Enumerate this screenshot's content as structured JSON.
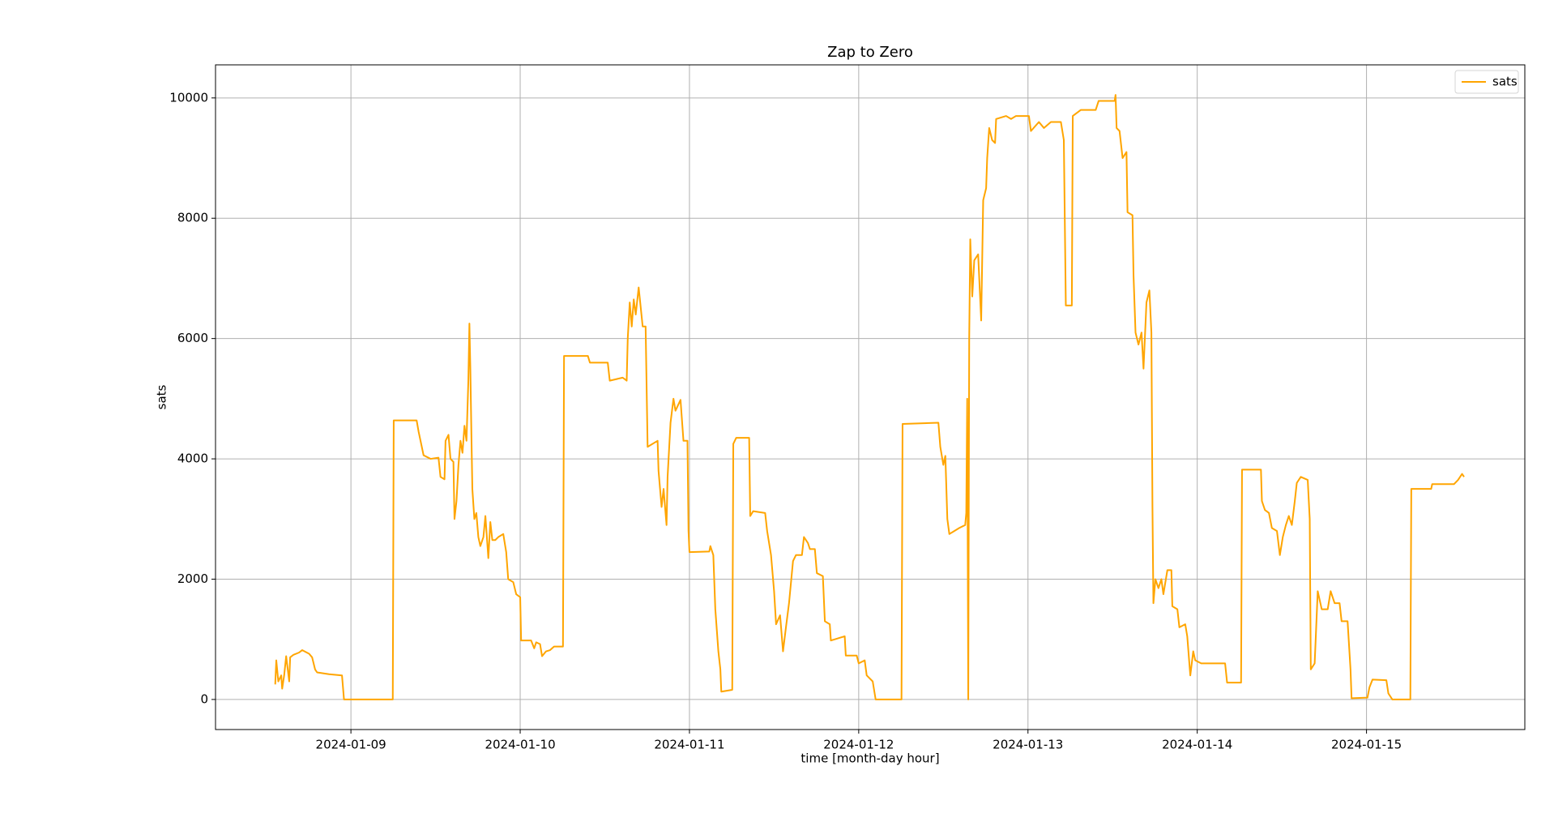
{
  "chart_data": {
    "type": "line",
    "title": "Zap to Zero",
    "x_label": "time [month-day hour]",
    "y_label": "sats",
    "x": [
      "2024-01-08 13:16",
      "2024-01-08 13:25",
      "2024-01-08 13:42",
      "2024-01-08 14:07",
      "2024-01-08 14:15",
      "2024-01-08 14:32",
      "2024-01-08 14:49",
      "2024-01-08 15:15",
      "2024-01-08 15:23",
      "2024-01-08 15:49",
      "2024-01-08 16:39",
      "2024-01-08 17:05",
      "2024-01-08 18:04",
      "2024-01-08 18:30",
      "2024-01-08 18:55",
      "2024-01-08 19:12",
      "2024-01-08 20:54",
      "2024-01-08 22:44",
      "2024-01-08 23:01",
      "2024-01-09 05:56",
      "2024-01-09 06:04",
      "2024-01-09 09:19",
      "2024-01-09 09:36",
      "2024-01-09 10:18",
      "2024-01-09 11:18",
      "2024-01-09 12:25",
      "2024-01-09 12:42",
      "2024-01-09 13:16",
      "2024-01-09 13:25",
      "2024-01-09 13:50",
      "2024-01-09 14:07",
      "2024-01-09 14:32",
      "2024-01-09 14:41",
      "2024-01-09 14:58",
      "2024-01-09 15:15",
      "2024-01-09 15:32",
      "2024-01-09 15:49",
      "2024-01-09 16:06",
      "2024-01-09 16:23",
      "2024-01-09 16:39",
      "2024-01-09 16:48",
      "2024-01-09 16:56",
      "2024-01-09 17:05",
      "2024-01-09 17:13",
      "2024-01-09 17:30",
      "2024-01-09 17:47",
      "2024-01-09 18:04",
      "2024-01-09 18:21",
      "2024-01-09 18:47",
      "2024-01-09 19:04",
      "2024-01-09 19:29",
      "2024-01-09 19:46",
      "2024-01-09 20:03",
      "2024-01-09 20:28",
      "2024-01-09 20:54",
      "2024-01-09 21:36",
      "2024-01-09 22:01",
      "2024-01-09 22:18",
      "2024-01-09 23:01",
      "2024-01-09 23:26",
      "2024-01-10 00:00",
      "2024-01-10 00:08",
      "2024-01-10 01:33",
      "2024-01-10 01:59",
      "2024-01-10 02:16",
      "2024-01-10 02:49",
      "2024-01-10 03:06",
      "2024-01-10 03:40",
      "2024-01-10 04:14",
      "2024-01-10 04:48",
      "2024-01-10 06:04",
      "2024-01-10 06:13",
      "2024-01-10 09:36",
      "2024-01-10 09:53",
      "2024-01-10 12:25",
      "2024-01-10 12:42",
      "2024-01-10 14:32",
      "2024-01-10 15:06",
      "2024-01-10 15:15",
      "2024-01-10 15:32",
      "2024-01-10 15:49",
      "2024-01-10 16:06",
      "2024-01-10 16:23",
      "2024-01-10 16:48",
      "2024-01-10 17:22",
      "2024-01-10 17:47",
      "2024-01-10 18:04",
      "2024-01-10 19:29",
      "2024-01-10 19:37",
      "2024-01-10 20:03",
      "2024-01-10 20:20",
      "2024-01-10 20:45",
      "2024-01-10 20:54",
      "2024-01-10 21:19",
      "2024-01-10 21:44",
      "2024-01-10 22:01",
      "2024-01-10 22:44",
      "2024-01-10 23:09",
      "2024-01-10 23:43",
      "2024-01-10 23:52",
      "2024-01-11 00:00",
      "2024-01-11 02:49",
      "2024-01-11 02:58",
      "2024-01-11 03:23",
      "2024-01-11 03:40",
      "2024-01-11 04:06",
      "2024-01-11 04:23",
      "2024-01-11 04:31",
      "2024-01-11 06:04",
      "2024-01-11 06:13",
      "2024-01-11 06:38",
      "2024-01-11 08:28",
      "2024-01-11 08:37",
      "2024-01-11 09:02",
      "2024-01-11 10:44",
      "2024-01-11 11:01",
      "2024-01-11 11:34",
      "2024-01-11 12:00",
      "2024-01-11 12:17",
      "2024-01-11 12:51",
      "2024-01-11 13:16",
      "2024-01-11 13:41",
      "2024-01-11 14:07",
      "2024-01-11 14:41",
      "2024-01-11 15:06",
      "2024-01-11 15:57",
      "2024-01-11 16:14",
      "2024-01-11 16:48",
      "2024-01-11 17:05",
      "2024-01-11 17:47",
      "2024-01-11 18:04",
      "2024-01-11 18:55",
      "2024-01-11 19:12",
      "2024-01-11 19:54",
      "2024-01-11 20:03",
      "2024-01-11 22:01",
      "2024-01-11 22:10",
      "2024-01-11 23:43",
      "2024-01-12 00:00",
      "2024-01-12 00:51",
      "2024-01-12 01:08",
      "2024-01-12 01:59",
      "2024-01-12 02:24",
      "2024-01-12 06:04",
      "2024-01-12 06:13",
      "2024-01-12 11:18",
      "2024-01-12 11:34",
      "2024-01-12 12:00",
      "2024-01-12 12:17",
      "2024-01-12 12:34",
      "2024-01-12 12:51",
      "2024-01-12 13:33",
      "2024-01-12 14:15",
      "2024-01-12 15:06",
      "2024-01-12 15:15",
      "2024-01-12 15:23",
      "2024-01-12 15:32",
      "2024-01-12 15:40",
      "2024-01-12 15:49",
      "2024-01-12 16:06",
      "2024-01-12 16:23",
      "2024-01-12 16:56",
      "2024-01-12 17:22",
      "2024-01-12 17:39",
      "2024-01-12 18:04",
      "2024-01-12 18:13",
      "2024-01-12 18:30",
      "2024-01-12 18:55",
      "2024-01-12 19:20",
      "2024-01-12 19:29",
      "2024-01-12 20:54",
      "2024-01-12 21:36",
      "2024-01-12 22:18",
      "2024-01-13 00:08",
      "2024-01-13 00:25",
      "2024-01-13 01:33",
      "2024-01-13 02:16",
      "2024-01-13 03:15",
      "2024-01-13 04:40",
      "2024-01-13 05:05",
      "2024-01-13 05:22",
      "2024-01-13 06:13",
      "2024-01-13 06:21",
      "2024-01-13 07:29",
      "2024-01-13 09:36",
      "2024-01-13 10:01",
      "2024-01-13 12:17",
      "2024-01-13 12:25",
      "2024-01-13 12:34",
      "2024-01-13 12:59",
      "2024-01-13 13:25",
      "2024-01-13 13:58",
      "2024-01-13 14:07",
      "2024-01-13 14:49",
      "2024-01-13 14:58",
      "2024-01-13 15:15",
      "2024-01-13 15:40",
      "2024-01-13 16:06",
      "2024-01-13 16:23",
      "2024-01-13 16:48",
      "2024-01-13 17:13",
      "2024-01-13 17:30",
      "2024-01-13 17:39",
      "2024-01-13 17:47",
      "2024-01-13 18:04",
      "2024-01-13 18:30",
      "2024-01-13 18:55",
      "2024-01-13 19:12",
      "2024-01-13 19:46",
      "2024-01-13 20:20",
      "2024-01-13 20:28",
      "2024-01-13 21:11",
      "2024-01-13 21:28",
      "2024-01-13 22:18",
      "2024-01-13 22:35",
      "2024-01-13 23:01",
      "2024-01-13 23:26",
      "2024-01-13 23:43",
      "2024-01-14 00:34",
      "2024-01-14 03:57",
      "2024-01-14 04:14",
      "2024-01-14 06:13",
      "2024-01-14 06:21",
      "2024-01-14 09:02",
      "2024-01-14 09:10",
      "2024-01-14 09:36",
      "2024-01-14 10:10",
      "2024-01-14 10:35",
      "2024-01-14 11:18",
      "2024-01-14 11:43",
      "2024-01-14 12:08",
      "2024-01-14 12:34",
      "2024-01-14 12:59",
      "2024-01-14 13:25",
      "2024-01-14 13:50",
      "2024-01-14 14:07",
      "2024-01-14 14:41",
      "2024-01-14 15:40",
      "2024-01-14 15:57",
      "2024-01-14 16:06",
      "2024-01-14 16:39",
      "2024-01-14 17:05",
      "2024-01-14 17:39",
      "2024-01-14 18:30",
      "2024-01-14 18:55",
      "2024-01-14 19:29",
      "2024-01-14 20:11",
      "2024-01-14 20:28",
      "2024-01-14 21:19",
      "2024-01-14 21:44",
      "2024-01-14 21:53",
      "2024-01-15 00:08",
      "2024-01-15 00:25",
      "2024-01-15 00:51",
      "2024-01-15 02:49",
      "2024-01-15 03:06",
      "2024-01-15 03:40",
      "2024-01-15 06:13",
      "2024-01-15 06:21",
      "2024-01-15 09:10",
      "2024-01-15 09:19",
      "2024-01-15 12:25",
      "2024-01-15 12:59",
      "2024-01-15 13:33",
      "2024-01-15 13:50"
    ],
    "series": [
      {
        "name": "sats",
        "color": "#ffa500",
        "values": [
          250,
          650,
          300,
          400,
          180,
          400,
          720,
          300,
          700,
          740,
          780,
          820,
          760,
          700,
          500,
          450,
          420,
          400,
          0,
          0,
          4640,
          4640,
          4450,
          4060,
          4000,
          4020,
          3700,
          3660,
          4300,
          4400,
          4000,
          3950,
          3000,
          3300,
          3900,
          4300,
          4100,
          4550,
          4300,
          5300,
          6250,
          5500,
          4400,
          3500,
          3000,
          3100,
          2700,
          2550,
          2700,
          3050,
          2350,
          2950,
          2650,
          2650,
          2700,
          2750,
          2450,
          2000,
          1950,
          1750,
          1700,
          980,
          980,
          850,
          950,
          920,
          720,
          800,
          820,
          880,
          880,
          5710,
          5710,
          5600,
          5600,
          5300,
          5350,
          5300,
          6000,
          6600,
          6200,
          6650,
          6400,
          6850,
          6200,
          6200,
          4200,
          4300,
          3800,
          3200,
          3500,
          2900,
          3700,
          4600,
          5000,
          4800,
          4980,
          4300,
          4300,
          2800,
          2450,
          2460,
          2550,
          2400,
          1500,
          800,
          500,
          130,
          160,
          4250,
          4350,
          4350,
          3050,
          3130,
          3100,
          2800,
          2400,
          1800,
          1250,
          1400,
          800,
          1200,
          1600,
          2300,
          2400,
          2400,
          2700,
          2600,
          2500,
          2500,
          2100,
          2050,
          1300,
          1250,
          980,
          1050,
          730,
          730,
          600,
          650,
          400,
          300,
          0,
          0,
          4580,
          4600,
          4200,
          3900,
          4050,
          3000,
          2750,
          2800,
          2850,
          2900,
          3100,
          5000,
          0,
          6000,
          7650,
          6700,
          7300,
          7400,
          6300,
          8300,
          8500,
          9000,
          9500,
          9300,
          9250,
          9650,
          9700,
          9650,
          9700,
          9700,
          9450,
          9600,
          9500,
          9600,
          9600,
          9300,
          6550,
          6550,
          9700,
          9800,
          9800,
          9950,
          9950,
          10050,
          9500,
          9450,
          9000,
          9100,
          8100,
          8050,
          7050,
          6100,
          5900,
          6100,
          5500,
          6600,
          6800,
          6100,
          3200,
          1600,
          2000,
          1850,
          2000,
          1750,
          2150,
          2150,
          1550,
          1500,
          1200,
          1250,
          1050,
          400,
          800,
          650,
          600,
          600,
          280,
          280,
          3820,
          3820,
          3300,
          3150,
          3100,
          2850,
          2800,
          2400,
          2700,
          2900,
          3050,
          2900,
          3300,
          3600,
          3700,
          3650,
          3000,
          500,
          600,
          1800,
          1500,
          1500,
          1800,
          1600,
          1600,
          1300,
          1300,
          500,
          20,
          30,
          200,
          330,
          320,
          100,
          0,
          0,
          3500,
          3500,
          3580,
          3580,
          3650,
          3750,
          3700
        ]
      }
    ],
    "xlim": [
      "2024-01-08 04:48",
      "2024-01-15 22:27"
    ],
    "xticks": [
      "2024-01-09",
      "2024-01-10",
      "2024-01-11",
      "2024-01-12",
      "2024-01-13",
      "2024-01-14",
      "2024-01-15"
    ],
    "ylim": [
      -500,
      10550
    ],
    "yticks": [
      0,
      2000,
      4000,
      6000,
      8000,
      10000
    ],
    "grid": true,
    "legend": "upper right"
  }
}
